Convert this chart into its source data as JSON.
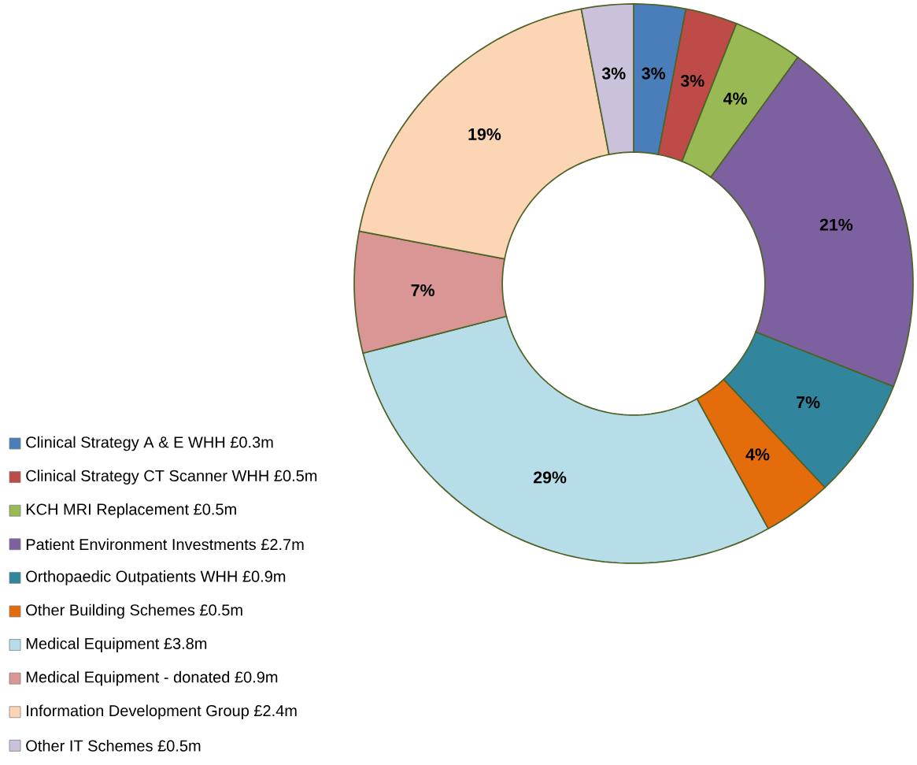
{
  "chart_data": {
    "type": "donut",
    "categories": [
      "Clinical Strategy A & E WHH £0.3m",
      "Clinical Strategy CT Scanner WHH £0.5m",
      "KCH MRI Replacement £0.5m",
      "Patient Environment Investments £2.7m",
      "Orthopaedic Outpatients WHH £0.9m",
      "Other Building Schemes £0.5m",
      "Medical Equipment £3.8m",
      "Medical Equipment - donated £0.9m",
      "Information Development Group £2.4m",
      "Other IT Schemes £0.5m"
    ],
    "values": [
      3,
      3,
      4,
      21,
      7,
      4,
      29,
      7,
      19,
      3
    ],
    "value_labels": [
      "3%",
      "3%",
      "4%",
      "21%",
      "7%",
      "4%",
      "29%",
      "7%",
      "19%",
      "3%"
    ],
    "colors": [
      "#4a7ebb",
      "#be4b48",
      "#98b954",
      "#7d60a0",
      "#31859c",
      "#e46c0a",
      "#b7dee8",
      "#d99694",
      "#fcd5b5",
      "#ccc1da"
    ],
    "legend": "left"
  }
}
